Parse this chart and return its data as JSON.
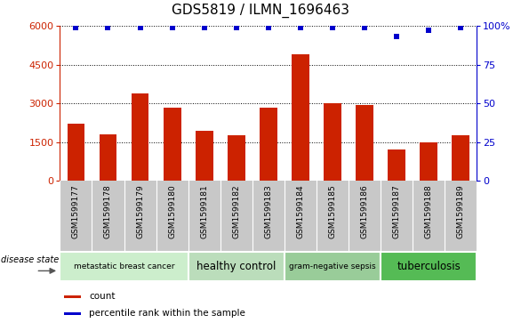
{
  "title": "GDS5819 / ILMN_1696463",
  "samples": [
    "GSM1599177",
    "GSM1599178",
    "GSM1599179",
    "GSM1599180",
    "GSM1599181",
    "GSM1599182",
    "GSM1599183",
    "GSM1599184",
    "GSM1599185",
    "GSM1599186",
    "GSM1599187",
    "GSM1599188",
    "GSM1599189"
  ],
  "counts": [
    2200,
    1800,
    3400,
    2850,
    1950,
    1750,
    2850,
    4900,
    3000,
    2950,
    1200,
    1500,
    1750
  ],
  "percentiles": [
    99,
    99,
    99,
    99,
    99,
    99,
    99,
    99,
    99,
    99,
    93,
    97,
    99
  ],
  "bar_color": "#cc2200",
  "dot_color": "#0000cc",
  "ylim_left": [
    0,
    6000
  ],
  "ylim_right": [
    0,
    100
  ],
  "yticks_left": [
    0,
    1500,
    3000,
    4500,
    6000
  ],
  "ytick_right_vals": [
    0,
    25,
    50,
    75,
    100
  ],
  "ytick_right_labels": [
    "0",
    "25",
    "50",
    "75",
    "100%"
  ],
  "groups": [
    {
      "label": "metastatic breast cancer",
      "start": 0,
      "end": 3,
      "color": "#cceecc"
    },
    {
      "label": "healthy control",
      "start": 4,
      "end": 6,
      "color": "#bbddbb"
    },
    {
      "label": "gram-negative sepsis",
      "start": 7,
      "end": 9,
      "color": "#99cc99"
    },
    {
      "label": "tuberculosis",
      "start": 10,
      "end": 12,
      "color": "#55bb55"
    }
  ],
  "tick_bg_color": "#c8c8c8",
  "bg_color": "#ffffff",
  "disease_state_label": "disease state",
  "legend_count": "count",
  "legend_percentile": "percentile rank within the sample",
  "title_fontsize": 11,
  "tick_fontsize": 7
}
